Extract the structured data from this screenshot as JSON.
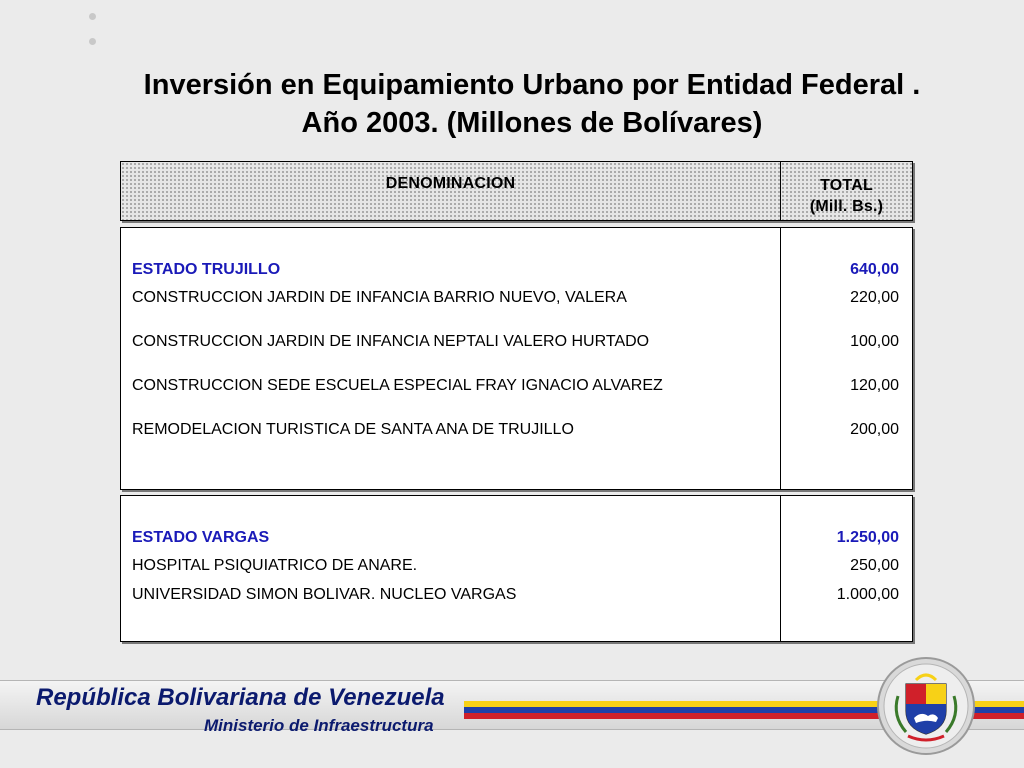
{
  "title": {
    "line1": "Inversión en Equipamiento Urbano por Entidad Federal .",
    "line2": "Año 2003. (Millones de Bolívares)"
  },
  "table": {
    "header": {
      "col1": "DENOMINACION",
      "col2_line1": "TOTAL",
      "col2_line2": "(Mill. Bs.)"
    },
    "sections": [
      {
        "state": "ESTADO TRUJILLO",
        "state_total": "640,00",
        "rows": [
          {
            "name": "CONSTRUCCION JARDIN DE INFANCIA BARRIO NUEVO, VALERA",
            "value": "220,00"
          },
          {
            "name": "CONSTRUCCION JARDIN DE INFANCIA NEPTALI VALERO HURTADO",
            "value": "100,00"
          },
          {
            "name": "CONSTRUCCION SEDE ESCUELA ESPECIAL FRAY IGNACIO ALVAREZ",
            "value": "120,00"
          },
          {
            "name": "REMODELACION TURISTICA DE SANTA ANA DE TRUJILLO",
            "value": "200,00"
          }
        ]
      },
      {
        "state": "ESTADO VARGAS",
        "state_total": "1.250,00",
        "rows": [
          {
            "name": "HOSPITAL PSIQUIATRICO DE ANARE.",
            "value": "250,00"
          },
          {
            "name": "UNIVERSIDAD SIMON BOLIVAR. NUCLEO VARGAS",
            "value": "1.000,00"
          }
        ]
      }
    ]
  },
  "footer": {
    "republica": "República Bolivariana de Venezuela",
    "ministerio": "Ministerio de Infraestructura"
  },
  "colors": {
    "state_text": "#1a1ab8",
    "footer_text": "#0b1a6e",
    "flag_yellow": "#f7d117",
    "flag_blue": "#1f3fa8",
    "flag_red": "#d0202a"
  },
  "icons": {
    "seal": "coat-of-arms-icon"
  }
}
